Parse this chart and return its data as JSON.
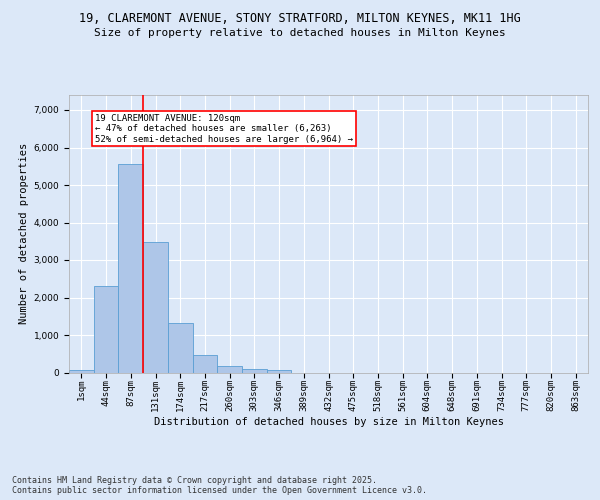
{
  "title_line1": "19, CLAREMONT AVENUE, STONY STRATFORD, MILTON KEYNES, MK11 1HG",
  "title_line2": "Size of property relative to detached houses in Milton Keynes",
  "xlabel": "Distribution of detached houses by size in Milton Keynes",
  "ylabel": "Number of detached properties",
  "footer": "Contains HM Land Registry data © Crown copyright and database right 2025.\nContains public sector information licensed under the Open Government Licence v3.0.",
  "categories": [
    "1sqm",
    "44sqm",
    "87sqm",
    "131sqm",
    "174sqm",
    "217sqm",
    "260sqm",
    "303sqm",
    "346sqm",
    "389sqm",
    "432sqm",
    "475sqm",
    "518sqm",
    "561sqm",
    "604sqm",
    "648sqm",
    "691sqm",
    "734sqm",
    "777sqm",
    "820sqm",
    "863sqm"
  ],
  "values": [
    80,
    2300,
    5550,
    3470,
    1320,
    460,
    165,
    90,
    55,
    0,
    0,
    0,
    0,
    0,
    0,
    0,
    0,
    0,
    0,
    0,
    0
  ],
  "bar_color": "#aec6e8",
  "bar_edge_color": "#5a9fd4",
  "vline_x": 2.5,
  "vline_color": "red",
  "annotation_text": "19 CLAREMONT AVENUE: 120sqm\n← 47% of detached houses are smaller (6,263)\n52% of semi-detached houses are larger (6,964) →",
  "annotation_box_color": "white",
  "annotation_box_edge_color": "red",
  "ylim": [
    0,
    7400
  ],
  "yticks": [
    0,
    1000,
    2000,
    3000,
    4000,
    5000,
    6000,
    7000
  ],
  "bg_color": "#dce8f8",
  "plot_bg_color": "#dce8f8",
  "grid_color": "white",
  "title_fontsize": 8.5,
  "subtitle_fontsize": 8,
  "axis_label_fontsize": 7.5,
  "tick_fontsize": 6.5,
  "footer_fontsize": 6,
  "annot_fontsize": 6.5
}
